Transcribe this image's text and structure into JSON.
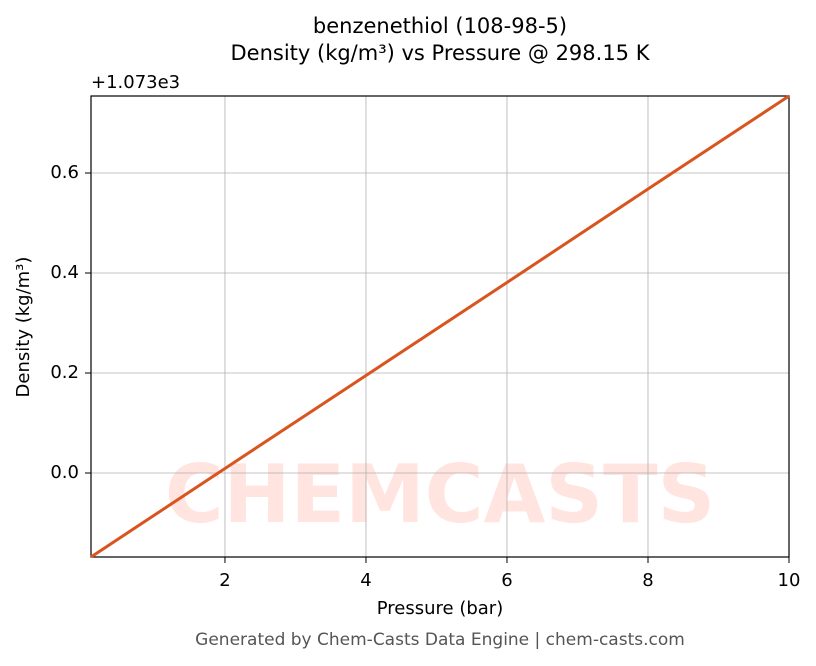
{
  "chart_data": {
    "type": "line",
    "title": "benzenethiol (108-98-5)",
    "subtitle": "Density (kg/m³) vs Pressure @ 298.15 K",
    "x_label": "Pressure (bar)",
    "y_label": "Density (kg/m³)",
    "y_offset_label": "+1.073e3",
    "footer": "Generated by Chem-Casts Data Engine | chem-casts.com",
    "watermark": "CHEMCASTS",
    "x": [
      0.1,
      2,
      4,
      6,
      8,
      10
    ],
    "series": [
      {
        "name": "Density",
        "color": "#d9541e",
        "values": [
          -0.168,
          0.009,
          0.195,
          0.381,
          0.568,
          0.754
        ]
      }
    ],
    "xlim": [
      0.1,
      10
    ],
    "ylim": [
      -0.168,
      0.754
    ],
    "xticks": [
      2,
      4,
      6,
      8,
      10
    ],
    "yticks": [
      {
        "value": 0,
        "label": "0.0"
      },
      0.2,
      0.4,
      0.6
    ],
    "grid": true
  }
}
